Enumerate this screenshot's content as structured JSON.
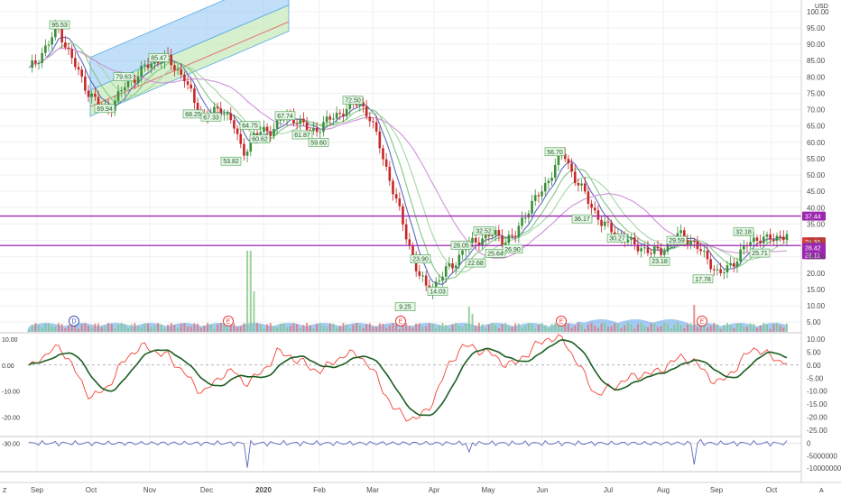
{
  "currency": "USD",
  "corner_left": "Z",
  "corner_right": "A",
  "colors": {
    "up": "#3a8f3a",
    "down": "#c62828",
    "purple": "#9c27b0",
    "red_badge": "#e53935",
    "volume": "#5aa0e6",
    "osc_red": "#f44336",
    "osc_green": "#1b5e20",
    "obv": "#5c6bc0",
    "channel_blue": "#8ec5f2",
    "channel_green": "#c5e8b7"
  },
  "price_axis": {
    "ticks": [
      100,
      95,
      90,
      85,
      80,
      75,
      70,
      65,
      60,
      55,
      50,
      45,
      40,
      35,
      30,
      25,
      20,
      15,
      10,
      5
    ],
    "tick_labels": [
      "100.00",
      "95.00",
      "90.00",
      "85.00",
      "80.00",
      "75.00",
      "70.00",
      "65.00",
      "60.00",
      "55.00",
      "50.00",
      "45.00",
      "40.00",
      "35.00",
      "30.00",
      "25.00",
      "20.00",
      "15.00",
      "10.00",
      "5.00"
    ]
  },
  "badges": [
    {
      "text": "37.44",
      "value": 37.44,
      "color": "#9c27b0"
    },
    {
      "text": "29.56",
      "value": 29.56,
      "color": "#e53935"
    },
    {
      "text": "28.42",
      "value": 28.42,
      "color": "#9c27b0"
    },
    {
      "text": "28.11",
      "value": 28.11,
      "color": "#9c27b0"
    }
  ],
  "osc_axis": {
    "ticks": [
      10,
      5,
      0,
      -5,
      -10,
      -15,
      -20,
      -25
    ],
    "tick_labels": [
      "10.00",
      "5.00",
      "0.00",
      "-5.00",
      "-10.00",
      "-15.00",
      "-20.00",
      "-25.00"
    ]
  },
  "osc_left_labels": [
    "10.00",
    "0.00",
    "-10.00",
    "-20.00",
    "-30.00"
  ],
  "obv_axis": {
    "tick_labels": [
      "0",
      "-5000000",
      "-10000000"
    ]
  },
  "x_labels": [
    "Sep",
    "Oct",
    "Nov",
    "Dec",
    "2020",
    "Feb",
    "Mar",
    "Apr",
    "May",
    "Jun",
    "Jul",
    "Aug",
    "Sep",
    "Oct"
  ],
  "event_markers": [
    "D",
    "E",
    "E",
    "E",
    "E"
  ],
  "chart_data": {
    "type": "candlestick",
    "y_unit": "USD",
    "ylim": [
      2,
      103
    ],
    "months": [
      "Sep",
      "Oct",
      "Nov",
      "Dec",
      "2020",
      "Feb",
      "Mar",
      "Apr",
      "May",
      "Jun",
      "Jul",
      "Aug",
      "Sep",
      "Oct"
    ],
    "close_path": [
      82,
      86,
      90,
      95.5,
      88,
      82,
      76,
      72,
      70,
      73,
      78,
      80,
      83,
      85,
      86,
      83,
      80,
      72,
      68,
      69,
      70,
      66,
      56,
      62,
      63,
      64,
      67,
      68,
      66,
      63,
      65,
      67,
      69,
      71,
      72.5,
      68,
      60,
      50,
      40,
      30,
      20,
      15,
      17,
      21,
      24,
      28,
      30,
      31,
      32,
      30,
      31,
      38,
      42,
      46,
      52,
      57,
      50,
      45,
      40,
      35,
      33,
      31,
      29,
      28,
      26,
      27,
      29,
      32,
      30,
      27,
      24,
      19,
      22,
      25,
      29,
      31,
      30,
      31,
      32
    ],
    "annotations": [
      {
        "text": "95.53",
        "value": 95.53
      },
      {
        "text": "69.94",
        "value": 69.94
      },
      {
        "text": "79.63",
        "value": 79.63
      },
      {
        "text": "85.47",
        "value": 85.47
      },
      {
        "text": "68.25",
        "value": 68.25
      },
      {
        "text": "67.33",
        "value": 67.33
      },
      {
        "text": "53.82",
        "value": 53.82
      },
      {
        "text": "64.75",
        "value": 64.75
      },
      {
        "text": "60.62",
        "value": 60.62
      },
      {
        "text": "67.74",
        "value": 67.74
      },
      {
        "text": "61.87",
        "value": 61.87
      },
      {
        "text": "59.60",
        "value": 59.6
      },
      {
        "text": "72.50",
        "value": 72.5
      },
      {
        "text": "9.25",
        "value": 9.25
      },
      {
        "text": "23.90",
        "value": 23.9
      },
      {
        "text": "14.03",
        "value": 14.03
      },
      {
        "text": "28.05",
        "value": 28.05
      },
      {
        "text": "22.68",
        "value": 22.68
      },
      {
        "text": "32.52",
        "value": 32.52
      },
      {
        "text": "25.64",
        "value": 25.64
      },
      {
        "text": "26.90",
        "value": 26.9
      },
      {
        "text": "56.70",
        "value": 56.7
      },
      {
        "text": "36.17",
        "value": 36.17
      },
      {
        "text": "30.27",
        "value": 30.27
      },
      {
        "text": "29.59",
        "value": 29.59
      },
      {
        "text": "23.18",
        "value": 23.18
      },
      {
        "text": "17.78",
        "value": 17.78
      },
      {
        "text": "32.18",
        "value": 32.18
      },
      {
        "text": "25.71",
        "value": 25.71
      }
    ],
    "horizontal_lines": [
      37.44,
      28.42
    ],
    "oscillator_range": [
      -27,
      12
    ],
    "obv_range": [
      -11000000,
      2000000
    ]
  }
}
